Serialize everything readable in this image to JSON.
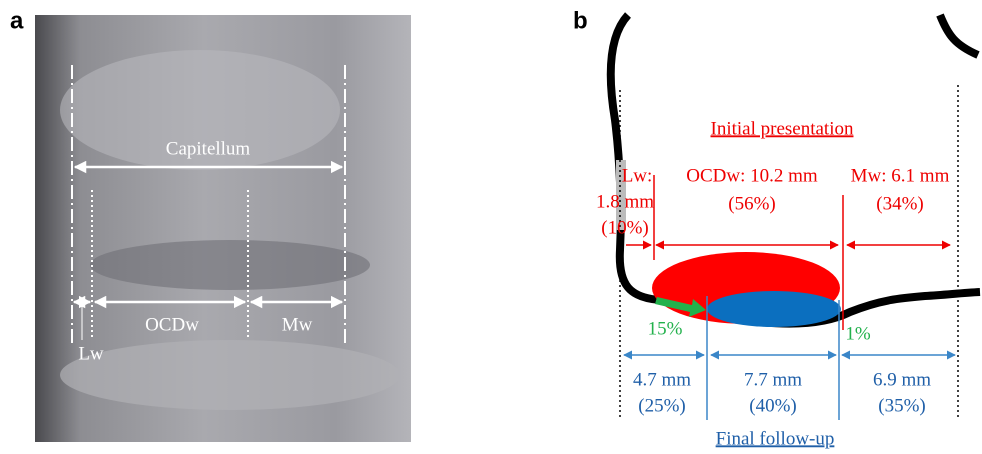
{
  "panel_a": {
    "label": "a",
    "capitellum": "Capitellum",
    "ocdw": "OCDw",
    "mw": "Mw",
    "lw": "Lw"
  },
  "panel_b": {
    "label": "b",
    "initial_title": "Initial presentation",
    "initial": {
      "lw_label": "Lw:",
      "lw_value": "1.8 mm",
      "lw_percent": "(10%)",
      "ocdw_value": "OCDw: 10.2 mm",
      "ocdw_percent": "(56%)",
      "mw_value": "Mw: 6.1 mm",
      "mw_percent": "(34%)"
    },
    "shift_lateral": "15%",
    "shift_medial": "1%",
    "final": {
      "lw_value": "4.7 mm",
      "lw_percent": "(25%)",
      "ocdw_value": "7.7 mm",
      "ocdw_percent": "(40%)",
      "mw_value": "6.9 mm",
      "mw_percent": "(35%)"
    },
    "final_title": "Final follow-up"
  }
}
